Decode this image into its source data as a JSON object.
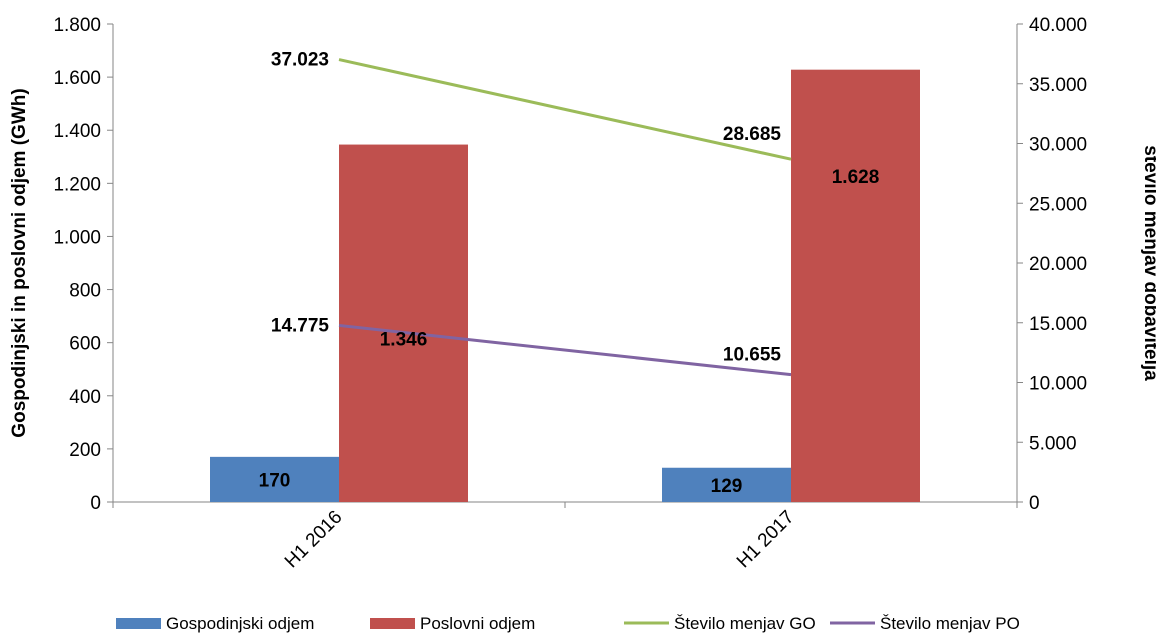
{
  "chart_data": {
    "type": "bar",
    "categories": [
      "H1 2016",
      "H1 2017"
    ],
    "ylabel": "Gospodinjski in poslovni odjem (GWh)",
    "y2label": "število menjav dobavitelja",
    "ylim": [
      0,
      1800
    ],
    "y2lim": [
      0,
      40000
    ],
    "y_ticks": [
      {
        "value": 0,
        "label": "0"
      },
      {
        "value": 200,
        "label": "200"
      },
      {
        "value": 400,
        "label": "400"
      },
      {
        "value": 600,
        "label": "600"
      },
      {
        "value": 800,
        "label": "800"
      },
      {
        "value": 1000,
        "label": "1.000"
      },
      {
        "value": 1200,
        "label": "1.200"
      },
      {
        "value": 1400,
        "label": "1.400"
      },
      {
        "value": 1600,
        "label": "1.600"
      },
      {
        "value": 1800,
        "label": "1.800"
      }
    ],
    "y2_ticks": [
      {
        "value": 0,
        "label": "0"
      },
      {
        "value": 5000,
        "label": "5.000"
      },
      {
        "value": 10000,
        "label": "10.000"
      },
      {
        "value": 15000,
        "label": "15.000"
      },
      {
        "value": 20000,
        "label": "20.000"
      },
      {
        "value": 25000,
        "label": "25.000"
      },
      {
        "value": 30000,
        "label": "30.000"
      },
      {
        "value": 35000,
        "label": "35.000"
      },
      {
        "value": 40000,
        "label": "40.000"
      }
    ],
    "series": [
      {
        "name": "Gospodinjski odjem",
        "type": "bar",
        "axis": "left",
        "color": "#4f81bd",
        "values": [
          170,
          129
        ],
        "labels": [
          "170",
          "129"
        ]
      },
      {
        "name": "Poslovni odjem",
        "type": "bar",
        "axis": "left",
        "color": "#c0504d",
        "values": [
          1346,
          1628
        ],
        "labels": [
          "1.346",
          "1.628"
        ]
      },
      {
        "name": "Število menjav GO",
        "type": "line",
        "axis": "right",
        "color": "#9bbb59",
        "values": [
          37023,
          28685
        ],
        "labels": [
          "37.023",
          "28.685"
        ]
      },
      {
        "name": "Število menjav PO",
        "type": "line",
        "axis": "right",
        "color": "#8064a2",
        "values": [
          14775,
          10655
        ],
        "labels": [
          "14.775",
          "10.655"
        ]
      }
    ],
    "legend_position": "bottom",
    "grid": false
  }
}
